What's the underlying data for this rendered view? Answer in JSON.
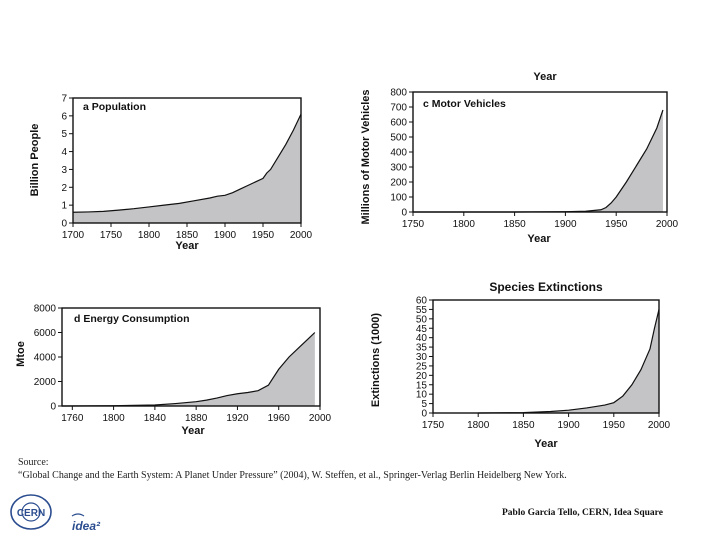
{
  "chart_data": [
    {
      "id": "a",
      "type": "area",
      "title": "a  Population",
      "xlabel": "Year",
      "ylabel": "Billion People",
      "xlim": [
        1700,
        2000
      ],
      "ylim": [
        0,
        7
      ],
      "xticks": [
        1700,
        1750,
        1800,
        1850,
        1900,
        1950,
        2000
      ],
      "yticks": [
        0,
        1,
        2,
        3,
        4,
        5,
        6,
        7
      ],
      "x": [
        1700,
        1720,
        1740,
        1760,
        1780,
        1800,
        1820,
        1840,
        1860,
        1880,
        1890,
        1900,
        1910,
        1920,
        1930,
        1940,
        1950,
        1955,
        1960,
        1970,
        1980,
        1990,
        2000
      ],
      "values": [
        0.6,
        0.62,
        0.65,
        0.72,
        0.8,
        0.9,
        1.0,
        1.1,
        1.25,
        1.4,
        1.5,
        1.55,
        1.7,
        1.9,
        2.1,
        2.3,
        2.5,
        2.8,
        3.0,
        3.7,
        4.4,
        5.2,
        6.1
      ]
    },
    {
      "id": "c",
      "type": "area",
      "title": "c  Motor Vehicles",
      "xlabel": "Year",
      "ylabel": "Millions of Motor Vehicles",
      "xlim": [
        1750,
        2000
      ],
      "ylim": [
        0,
        800
      ],
      "xticks": [
        1750,
        1800,
        1850,
        1900,
        1950,
        2000
      ],
      "yticks": [
        0,
        100,
        200,
        300,
        400,
        500,
        600,
        700,
        800
      ],
      "x": [
        1750,
        1800,
        1850,
        1900,
        1920,
        1935,
        1940,
        1945,
        1950,
        1960,
        1970,
        1980,
        1990,
        1996
      ],
      "values": [
        0,
        0,
        0,
        2,
        5,
        15,
        30,
        60,
        100,
        200,
        310,
        420,
        560,
        680
      ]
    },
    {
      "id": "d",
      "type": "area",
      "title": "d  Energy Consumption",
      "xlabel": "Year",
      "ylabel": "Mtoe",
      "xlim": [
        1750,
        2000
      ],
      "ylim": [
        0,
        8000
      ],
      "xticks": [
        1760,
        1800,
        1840,
        1880,
        1920,
        1960,
        2000
      ],
      "yticks": [
        0,
        2000,
        4000,
        6000,
        8000
      ],
      "x": [
        1750,
        1800,
        1840,
        1860,
        1880,
        1890,
        1900,
        1910,
        1920,
        1930,
        1940,
        1950,
        1960,
        1970,
        1980,
        1990,
        1995
      ],
      "values": [
        0,
        20,
        80,
        200,
        350,
        480,
        650,
        850,
        1000,
        1100,
        1250,
        1700,
        3000,
        4000,
        4800,
        5600,
        6000
      ]
    },
    {
      "id": "e",
      "type": "area",
      "title": "Species Extinctions",
      "xlabel": "Year",
      "ylabel": "Extinctions (1000)",
      "xlim": [
        1750,
        2000
      ],
      "ylim": [
        0,
        60
      ],
      "xticks": [
        1750,
        1800,
        1850,
        1900,
        1950,
        2000
      ],
      "yticks": [
        0,
        5,
        10,
        15,
        20,
        25,
        30,
        35,
        40,
        45,
        50,
        55,
        60
      ],
      "x": [
        1800,
        1850,
        1880,
        1900,
        1920,
        1940,
        1950,
        1960,
        1970,
        1980,
        1990,
        1995,
        2000
      ],
      "values": [
        0,
        0.2,
        0.8,
        1.5,
        2.7,
        4.2,
        5.5,
        9,
        15,
        23,
        34,
        45,
        55
      ]
    }
  ],
  "footer": {
    "source_label": "Source:",
    "source_text": "“Global Change and the Earth System: A Planet Under Pressure” (2004), W. Steffen, et al., Springer-Verlag Berlin Heidelberg New York.",
    "credit": "Pablo Garcia Tello, CERN, Idea Square",
    "partial_label": "Year",
    "logo_cern": "CERN",
    "logo_idea": "idea²"
  }
}
